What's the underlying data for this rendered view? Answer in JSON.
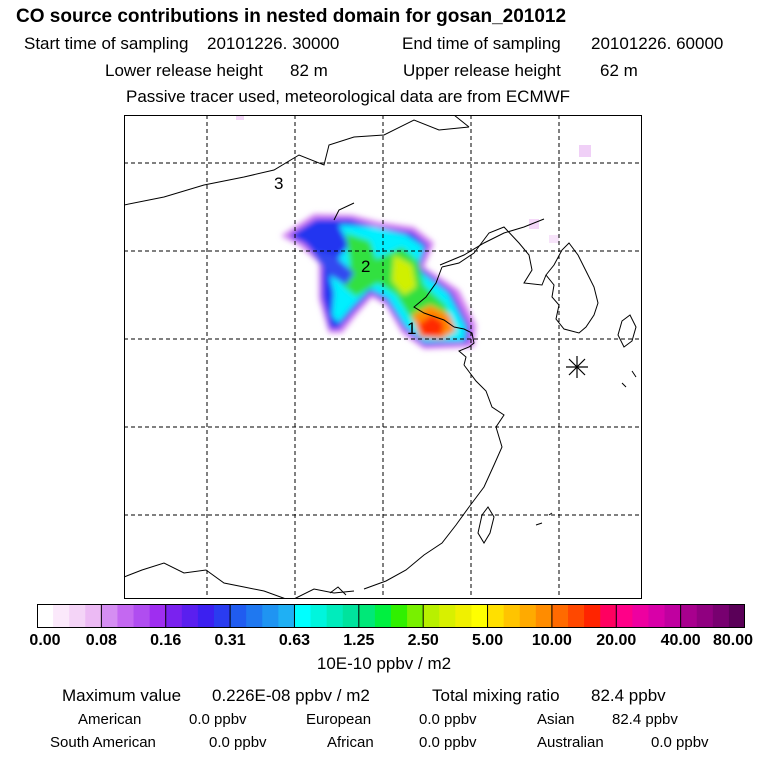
{
  "header": {
    "title": "CO  source contributions in nested domain for gosan_201012",
    "start_label": "Start time of sampling",
    "start_value": "20101226. 30000",
    "end_label": "End time of sampling",
    "end_value": "20101226. 60000",
    "lower_label": "Lower release height",
    "lower_value": "82 m",
    "upper_label": "Upper release height",
    "upper_value": "62 m",
    "note": "Passive tracer used, meteorological data are from ECMWF"
  },
  "map": {
    "markers": [
      "1",
      "2",
      "3"
    ],
    "receptor_symbol": "station-asterisk"
  },
  "colorbar": {
    "ticks": [
      "0.00",
      "0.08",
      "0.16",
      "0.31",
      "0.63",
      "1.25",
      "2.50",
      "5.00",
      "10.00",
      "20.00",
      "40.00",
      "80.00"
    ],
    "units": "10E-10 ppbv / m2",
    "colors": [
      "#ffffff",
      "#fbe9fb",
      "#f4d4f7",
      "#ecbaf4",
      "#d58ef2",
      "#c468f1",
      "#b04df0",
      "#9f2ef0",
      "#7a22ef",
      "#5a1fef",
      "#3c20f0",
      "#2a3cf0",
      "#205cf0",
      "#1f78f0",
      "#1f94f2",
      "#1fb0f4",
      "#00ffff",
      "#00f5dd",
      "#00ecbc",
      "#00e39d",
      "#00e878",
      "#00f040",
      "#30f000",
      "#78f000",
      "#b8f000",
      "#d8f000",
      "#f0f000",
      "#ffff00",
      "#ffe000",
      "#ffc400",
      "#ffaa00",
      "#ff8c00",
      "#ff6a00",
      "#ff4800",
      "#ff2400",
      "#ff0060",
      "#ff0088",
      "#ee00a0",
      "#d800a8",
      "#c000a0",
      "#a8008e",
      "#900080",
      "#780070",
      "#5a0058"
    ]
  },
  "stats": {
    "max_label": "Maximum value",
    "max_value": "0.226E-08 ppbv / m2",
    "total_label": "Total mixing ratio",
    "total_value": "82.4 ppbv",
    "american_label": "American",
    "american_value": "0.0 ppbv",
    "european_label": "European",
    "european_value": "0.0 ppbv",
    "asian_label": "Asian",
    "asian_value": "82.4 ppbv",
    "south_american_label": "South American",
    "south_american_value": "0.0 ppbv",
    "african_label": "African",
    "african_value": "0.0 ppbv",
    "australian_label": "Australian",
    "australian_value": "0.0 ppbv"
  }
}
